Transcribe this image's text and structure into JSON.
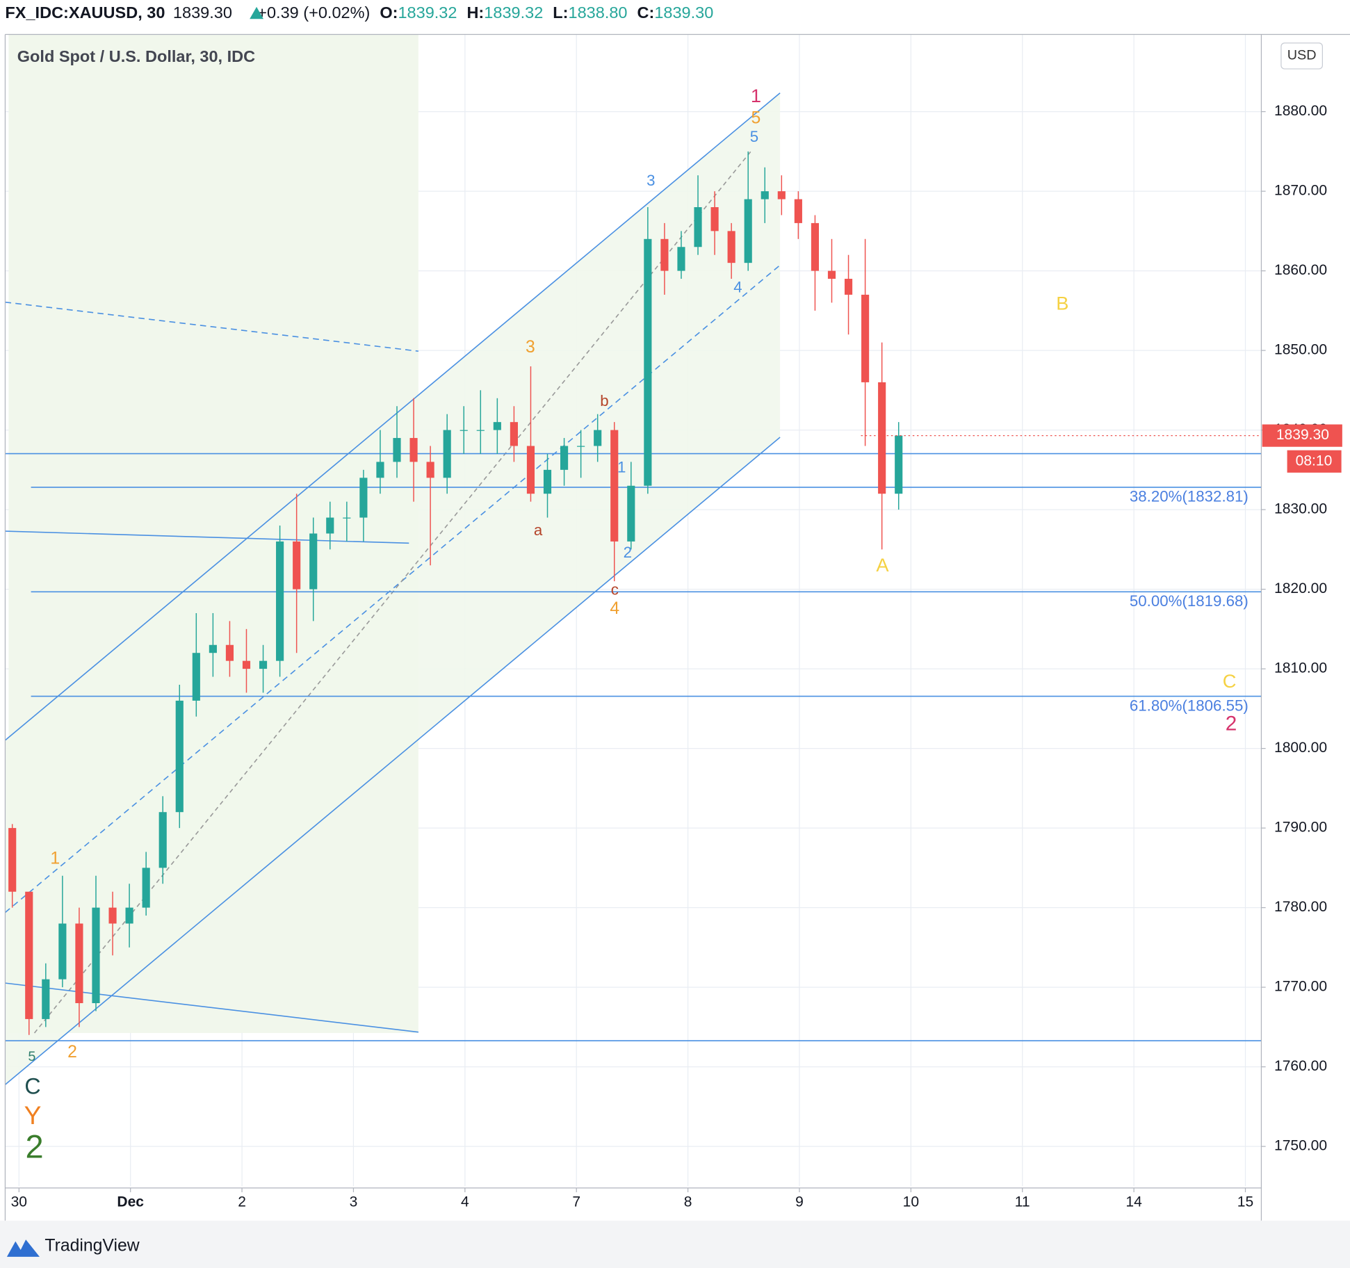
{
  "header": {
    "symbol": "FX_IDC:XAUUSD, 30",
    "change": "+0.39 (+0.02%)",
    "o_label": "O:",
    "o": "1839.32",
    "h_label": "H:",
    "h": "1839.32",
    "l_label": "L:",
    "l": "1838.80",
    "c_label": "C:",
    "c": "1839.30"
  },
  "chart_data": {
    "type": "candlestick",
    "title": "Gold Spot / U.S. Dollar, 30, IDC",
    "currency": "USD",
    "x": [
      -0.06,
      0.09,
      0.24,
      0.39,
      0.54,
      0.69,
      0.84,
      0.99,
      1.14,
      1.29,
      1.44,
      1.59,
      1.74,
      1.89,
      2.04,
      2.19,
      2.34,
      2.49,
      2.64,
      2.79,
      2.94,
      3.09,
      3.24,
      3.39,
      3.54,
      3.69,
      3.84,
      3.99,
      4.14,
      4.29,
      4.44,
      4.59,
      4.74,
      4.89,
      5.04,
      5.19,
      5.34,
      5.49,
      5.64,
      5.79,
      5.94,
      6.09,
      6.24,
      6.39,
      6.54,
      6.69,
      6.84,
      6.99,
      7.14,
      7.29,
      7.44,
      7.59,
      7.74,
      7.89
    ],
    "open": [
      1790,
      1782,
      1766,
      1771,
      1778,
      1768,
      1780,
      1778,
      1780,
      1785,
      1792,
      1806,
      1812,
      1813,
      1811,
      1810,
      1811,
      1826,
      1820,
      1827,
      1829,
      1829,
      1834,
      1836,
      1839,
      1836,
      1834,
      1840,
      1840,
      1840,
      1841,
      1838,
      1832,
      1835,
      1838,
      1838,
      1840,
      1826,
      1833,
      1864,
      1860,
      1863,
      1868,
      1865,
      1861,
      1869,
      1870,
      1869,
      1866,
      1860,
      1859,
      1857,
      1846,
      1832
    ],
    "high": [
      1790.5,
      1782,
      1773,
      1784,
      1780,
      1784,
      1782,
      1783,
      1787,
      1794,
      1808,
      1817,
      1817,
      1816,
      1815,
      1813,
      1828,
      1832,
      1829,
      1831,
      1831,
      1835,
      1840,
      1843,
      1844,
      1838,
      1842,
      1843,
      1845,
      1844,
      1843,
      1848,
      1837,
      1839,
      1840,
      1842,
      1841,
      1836,
      1868,
      1866,
      1865,
      1872,
      1870,
      1866,
      1875,
      1873,
      1872,
      1870,
      1867,
      1864,
      1862,
      1864,
      1851,
      1841
    ],
    "low": [
      1780,
      1764,
      1765,
      1770,
      1765,
      1767,
      1774,
      1775,
      1779,
      1783,
      1790,
      1804,
      1809,
      1809,
      1807,
      1807,
      1809,
      1812,
      1816,
      1825,
      1826,
      1826,
      1832,
      1834,
      1831,
      1823,
      1832,
      1837,
      1837,
      1837,
      1836,
      1831,
      1829,
      1833,
      1834,
      1836,
      1821,
      1825,
      1832,
      1857,
      1859,
      1862,
      1862,
      1859,
      1860,
      1866,
      1867,
      1864,
      1855,
      1856,
      1852,
      1838,
      1825,
      1830
    ],
    "close": [
      1782,
      1766,
      1771,
      1778,
      1768,
      1780,
      1778,
      1780,
      1785,
      1792,
      1806,
      1812,
      1813,
      1811,
      1810,
      1811,
      1826,
      1820,
      1827,
      1829,
      1829,
      1834,
      1836,
      1839,
      1836,
      1834,
      1840,
      1840,
      1840,
      1841,
      1838,
      1832,
      1835,
      1838,
      1838,
      1840,
      1826,
      1833,
      1864,
      1860,
      1863,
      1868,
      1865,
      1861,
      1869,
      1870,
      1869,
      1866,
      1860,
      1859,
      1857,
      1846,
      1832,
      1839.3
    ],
    "up_color": "#26a69a",
    "down_color": "#ef5350",
    "xlim": [
      -0.124,
      11.143
    ],
    "xticks": [
      {
        "value": 0,
        "label": "30"
      },
      {
        "value": 1,
        "label": "Dec"
      },
      2,
      3,
      4,
      {
        "value": 5,
        "label": "7"
      },
      {
        "value": 6,
        "label": "8"
      },
      {
        "value": 7,
        "label": "9"
      },
      {
        "value": 8,
        "label": "10"
      },
      {
        "value": 9,
        "label": "11"
      },
      {
        "value": 10,
        "label": "14"
      },
      {
        "value": 11,
        "label": "15"
      }
    ],
    "ylim": [
      1745.0,
      1889.7
    ],
    "yticks": [
      {
        "value": 1750,
        "label": "1750.00"
      },
      {
        "value": 1760,
        "label": "1760.00"
      },
      {
        "value": 1770,
        "label": "1770.00"
      },
      {
        "value": 1780,
        "label": "1780.00"
      },
      {
        "value": 1790,
        "label": "1790.00"
      },
      {
        "value": 1800,
        "label": "1800.00"
      },
      {
        "value": 1810,
        "label": "1810.00"
      },
      {
        "value": 1820,
        "label": "1820.00"
      },
      {
        "value": 1830,
        "label": "1830.00"
      },
      {
        "value": 1840,
        "label": "1840.00"
      },
      {
        "value": 1850,
        "label": "1850.00"
      },
      {
        "value": 1860,
        "label": "1860.00"
      },
      {
        "value": 1870,
        "label": "1870.00"
      },
      {
        "value": 1880,
        "label": "1880.00"
      }
    ],
    "grid": true,
    "last_price": {
      "value": 1839.3,
      "label": "1839.30"
    },
    "countdown": "08:10",
    "fib_levels": [
      {
        "value": 1832.81,
        "label": "38.20%(1832.81)"
      },
      {
        "value": 1819.68,
        "label": "50.00%(1819.68)"
      },
      {
        "value": 1806.55,
        "label": "61.80%(1806.55)"
      }
    ],
    "annotations": [
      "1",
      "5",
      "5",
      "3",
      "4",
      "B",
      "3",
      "b",
      "a",
      "1",
      "2",
      "c",
      "4",
      "A",
      "C",
      "2",
      "1",
      "5",
      "2",
      "C",
      "Y",
      "2"
    ]
  },
  "footer": {
    "brand": "TradingView"
  }
}
